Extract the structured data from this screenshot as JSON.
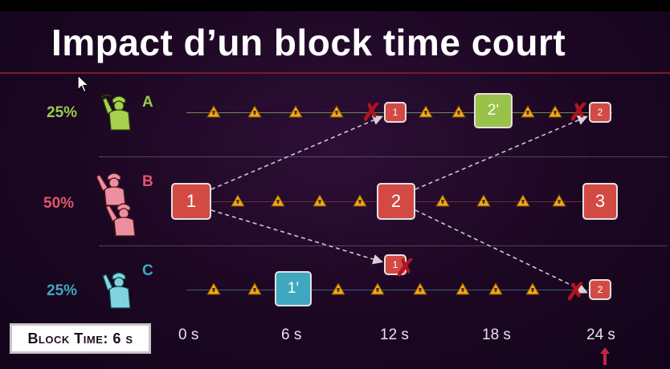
{
  "title": "Impact d’un block time court",
  "miners": [
    {
      "letter": "A",
      "percent": "25%",
      "color": "#9acb4a"
    },
    {
      "letter": "B",
      "percent": "50%",
      "color": "#e0566a"
    },
    {
      "letter": "C",
      "percent": "25%",
      "color": "#3fa8be"
    }
  ],
  "blocks": {
    "a_1": "1",
    "a_2prime": "2'",
    "a_2": "2",
    "b_1": "1",
    "b_2": "2",
    "b_3": "3",
    "c_1prime": "1'",
    "c_1": "1",
    "c_2": "2"
  },
  "axis_ticks": [
    "0 s",
    "6 s",
    "12 s",
    "18 s",
    "24 s"
  ],
  "block_time_label": "Block Time: 6 s",
  "colors": {
    "block_red": "#d24a43",
    "block_green": "#98c24a",
    "block_teal": "#3fa7bf",
    "cross": "#b0141e"
  },
  "icons": [
    "warning-icon",
    "cross-icon",
    "pointer-cursor-icon",
    "up-arrow-icon"
  ]
}
